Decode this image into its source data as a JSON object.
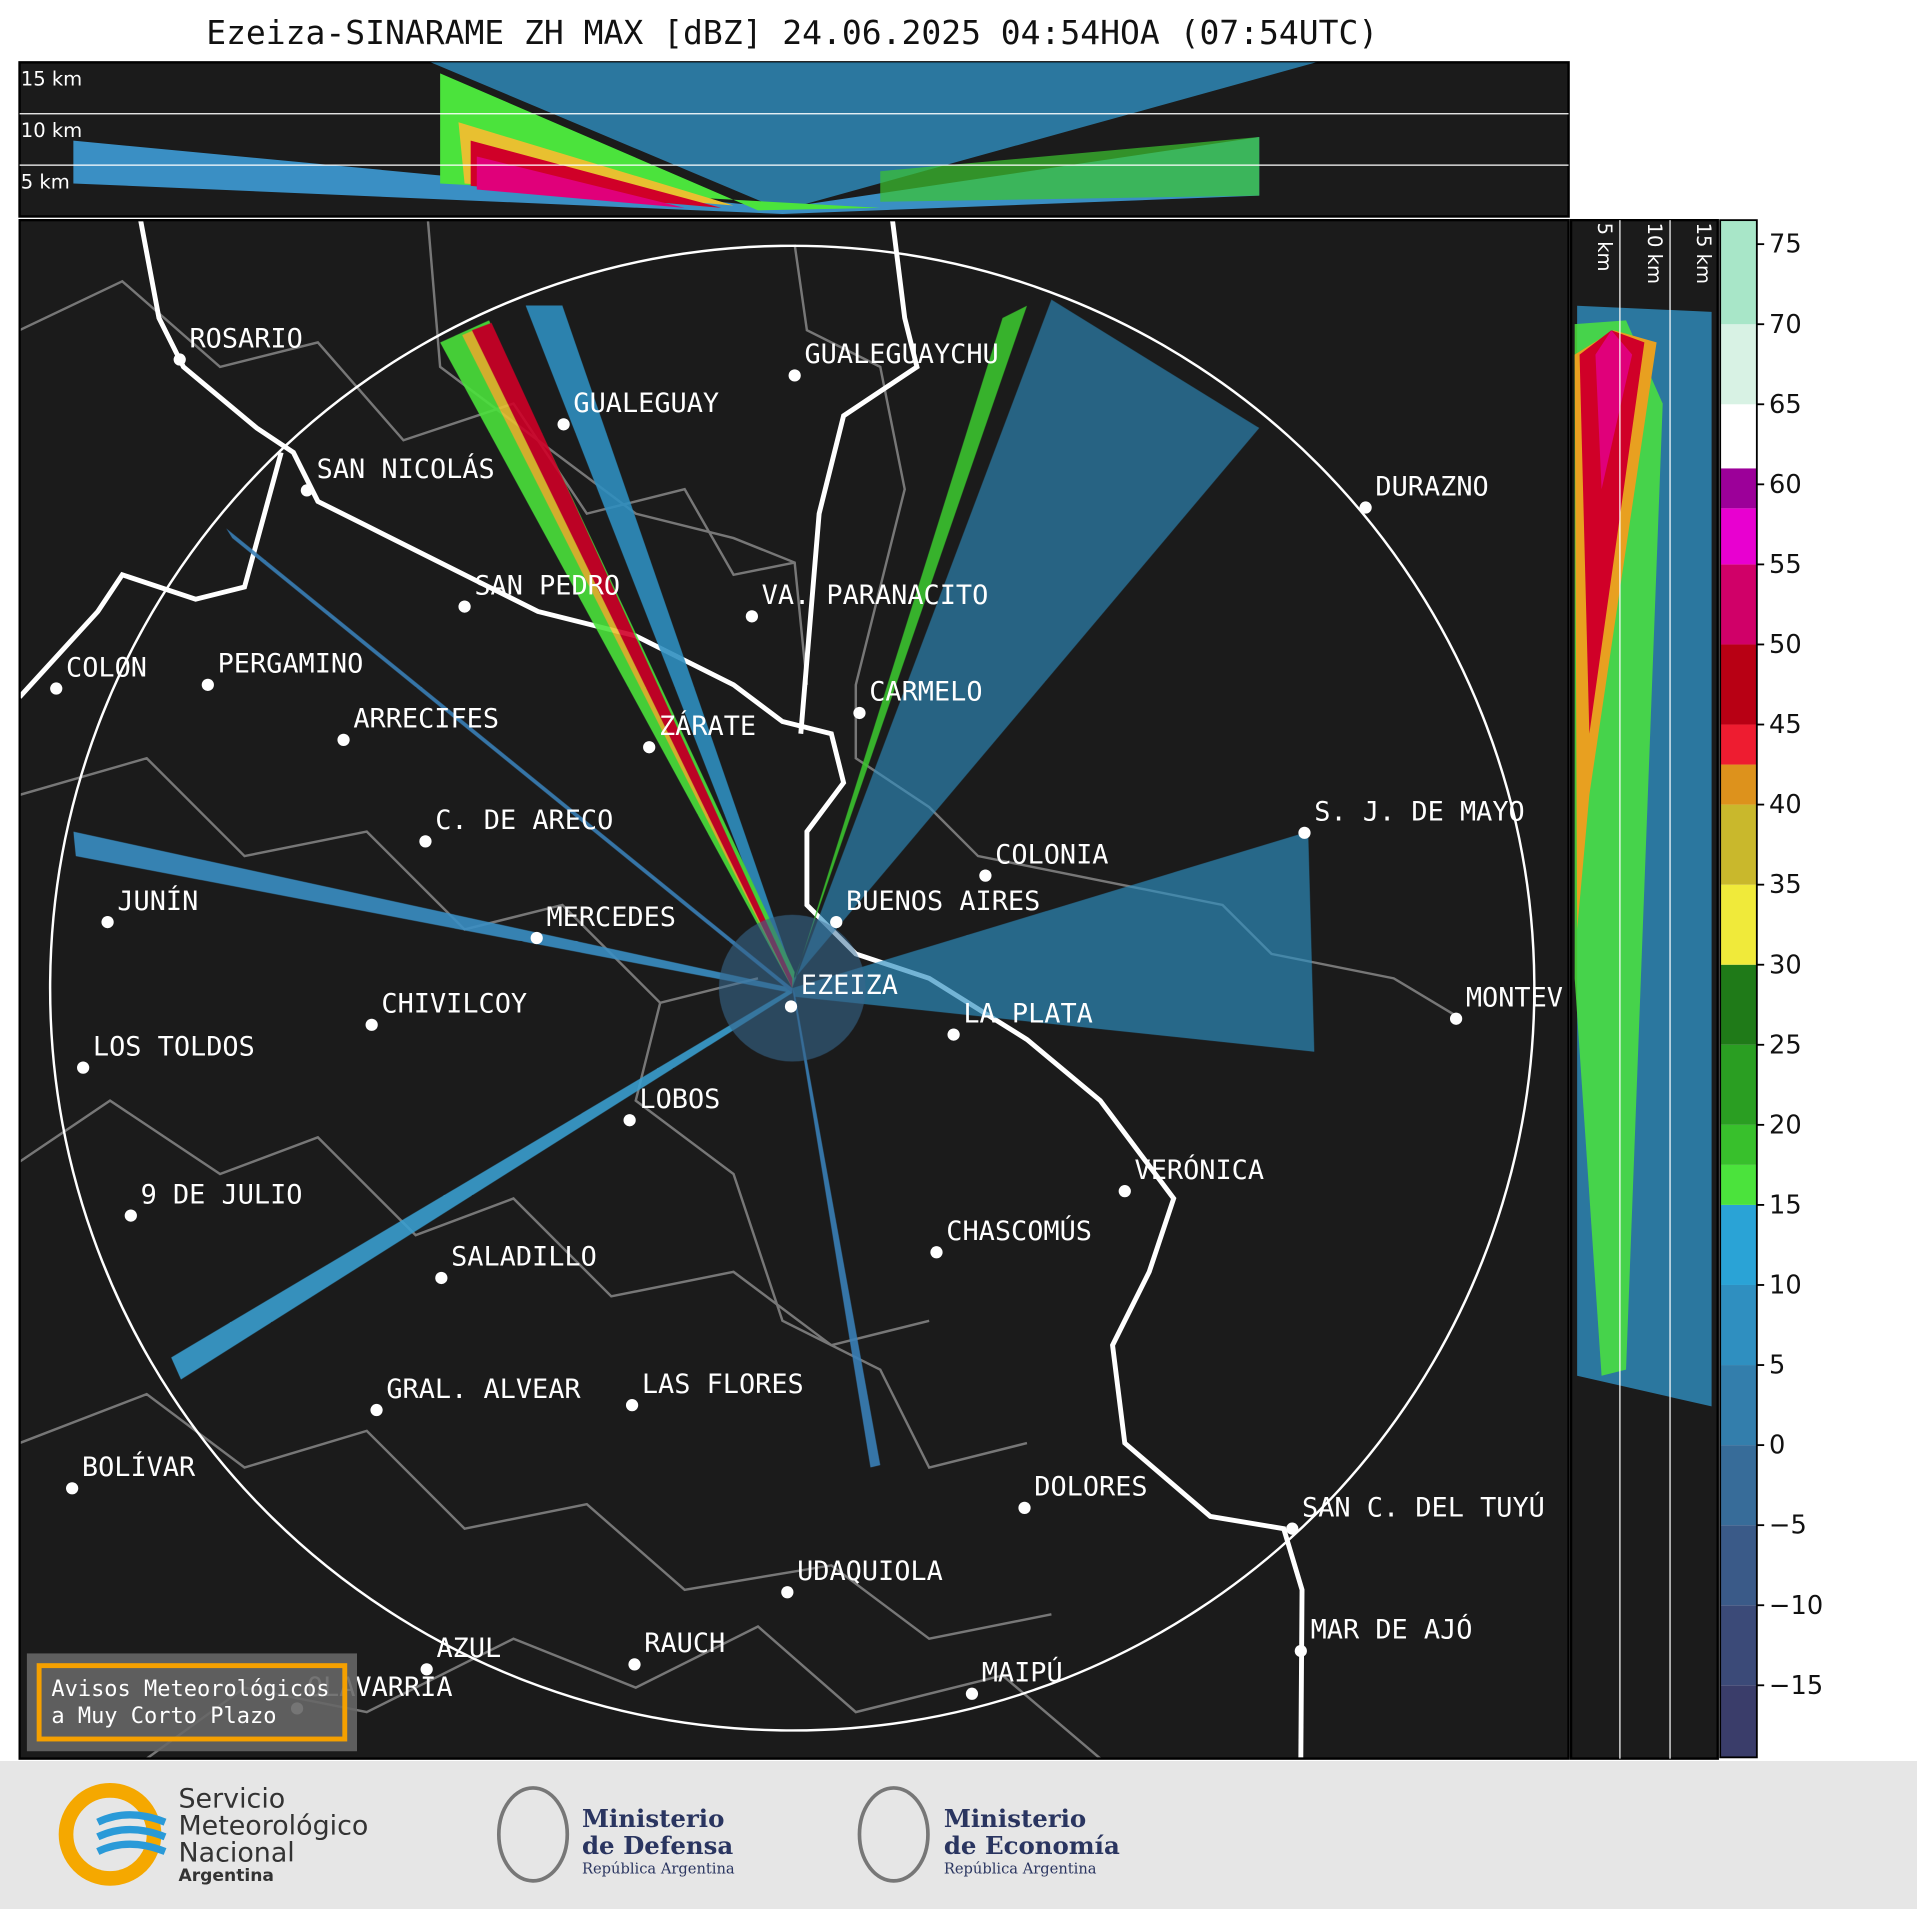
{
  "header": {
    "title": "Ezeiza-SINARAME ZH MAX [dBZ] 24.06.2025 04:54HOA (07:54UTC)"
  },
  "top_panel": {
    "height_labels": [
      "15 km",
      "10 km",
      "5 km"
    ]
  },
  "side_panel": {
    "height_labels": [
      "5 km",
      "10 km",
      "15 km"
    ]
  },
  "cities": [
    {
      "label": "ROSARIO"
    },
    {
      "label": "GUALEGUAYCHU"
    },
    {
      "label": "GUALEGUAY"
    },
    {
      "label": "SAN NICOLÁS"
    },
    {
      "label": "DURAZNO"
    },
    {
      "label": "SAN PEDRO"
    },
    {
      "label": "VA. PARANACITO"
    },
    {
      "label": "COLON"
    },
    {
      "label": "PERGAMINO"
    },
    {
      "label": "CARMELO"
    },
    {
      "label": "ARRECIFES"
    },
    {
      "label": "ZÁRATE"
    },
    {
      "label": "S. J. DE MAYO"
    },
    {
      "label": "C. DE ARECO"
    },
    {
      "label": "COLONIA"
    },
    {
      "label": "BUENOS AIRES"
    },
    {
      "label": "JUNÍN"
    },
    {
      "label": "MERCEDES"
    },
    {
      "label": "MONTEV"
    },
    {
      "label": "EZEIZA"
    },
    {
      "label": "CHIVILCOY"
    },
    {
      "label": "LA PLATA"
    },
    {
      "label": "LOS TOLDOS"
    },
    {
      "label": "LOBOS"
    },
    {
      "label": "VERÓNICA"
    },
    {
      "label": "9 DE JULIO"
    },
    {
      "label": "CHASCOMÚS"
    },
    {
      "label": "SALADILLO"
    },
    {
      "label": "GRAL. ALVEAR"
    },
    {
      "label": "LAS FLORES"
    },
    {
      "label": "BOLÍVAR"
    },
    {
      "label": "DOLORES"
    },
    {
      "label": "SAN C. DEL TUYÚ"
    },
    {
      "label": "UDAQUIOLA"
    },
    {
      "label": "MAR DE AJÓ"
    },
    {
      "label": "AZUL"
    },
    {
      "label": "RAUCH"
    },
    {
      "label": "MAIPÚ"
    },
    {
      "label": "OLAVARRÍA"
    }
  ],
  "colorbar": {
    "lim": [
      -19.5,
      76.5
    ],
    "ticks": [
      {
        "value": -15,
        "label": "−15"
      },
      {
        "value": -10,
        "label": "−10"
      },
      {
        "value": -5,
        "label": "−5"
      },
      0,
      5,
      10,
      15,
      20,
      25,
      30,
      35,
      40,
      45,
      50,
      55,
      60,
      65,
      70,
      75
    ],
    "bounds": [
      -19.5,
      -15,
      -10,
      -5,
      0,
      5,
      10,
      15,
      17.5,
      20,
      25,
      30,
      35,
      40,
      42.5,
      45,
      50,
      55,
      58.5,
      61,
      65,
      70,
      76.5
    ],
    "colors": [
      "#3a3d6a",
      "#3b4a78",
      "#3a5a88",
      "#376c99",
      "#337eac",
      "#2f8fc0",
      "#2aa3d6",
      "#4be33c",
      "#38c02c",
      "#2a9e22",
      "#1f7a18",
      "#f0ea3a",
      "#c9b82c",
      "#dd921c",
      "#ee1c30",
      "#b80014",
      "#d00068",
      "#e800d0",
      "#9c0099",
      "#ffffff",
      "#d8f2e4",
      "#a8e6c8"
    ]
  },
  "notice": {
    "lines": [
      "Avisos Meteorológicos",
      "a Muy Corto Plazo"
    ]
  },
  "logos": {
    "smn": [
      "Servicio",
      "Meteorológico",
      "Nacional",
      "Argentina"
    ],
    "defensa": [
      "Ministerio",
      "de Defensa",
      "República Argentina"
    ],
    "economia": [
      "Ministerio",
      "de Economía",
      "República Argentina"
    ]
  }
}
